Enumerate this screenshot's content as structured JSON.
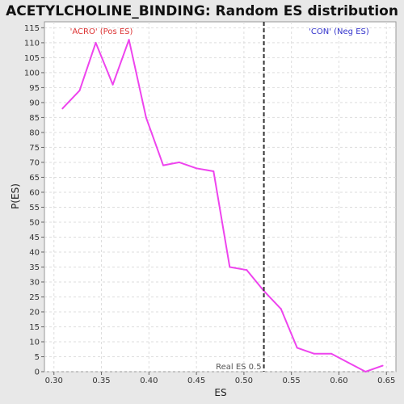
{
  "chart_data": {
    "type": "line",
    "title": "ACETYLCHOLINE_BINDING: Random ES distribution",
    "xlabel": "ES",
    "ylabel": "P(ES)",
    "xlim": [
      0.29,
      0.66
    ],
    "ylim": [
      0,
      117
    ],
    "xticks": [
      "0.30",
      "0.35",
      "0.40",
      "0.45",
      "0.50",
      "0.55",
      "0.60",
      "0.65"
    ],
    "yticks": [
      "0",
      "5",
      "10",
      "15",
      "20",
      "25",
      "30",
      "35",
      "40",
      "45",
      "50",
      "55",
      "60",
      "65",
      "70",
      "75",
      "80",
      "85",
      "90",
      "95",
      "100",
      "105",
      "110",
      "115"
    ],
    "grid": true,
    "series": [
      {
        "color": "#ee44ee",
        "x": [
          0.309,
          0.327,
          0.344,
          0.362,
          0.379,
          0.397,
          0.415,
          0.432,
          0.45,
          0.468,
          0.485,
          0.503,
          0.521,
          0.539,
          0.556,
          0.574,
          0.592,
          0.61,
          0.628,
          0.646
        ],
        "y": [
          88,
          94,
          110,
          96,
          111,
          85,
          69,
          70,
          68,
          67,
          35,
          34,
          27,
          21,
          8,
          6,
          6,
          3,
          0,
          2
        ]
      }
    ],
    "real_es": {
      "x": 0.521,
      "label": "Real ES 0.5"
    },
    "annotations": [
      {
        "text": "'ACRO' (Pos ES)",
        "x": 0.35,
        "y": 114,
        "color": "#dd3333"
      },
      {
        "text": "'CON' (Neg ES)",
        "x": 0.6,
        "y": 114,
        "color": "#3333cc"
      }
    ]
  }
}
